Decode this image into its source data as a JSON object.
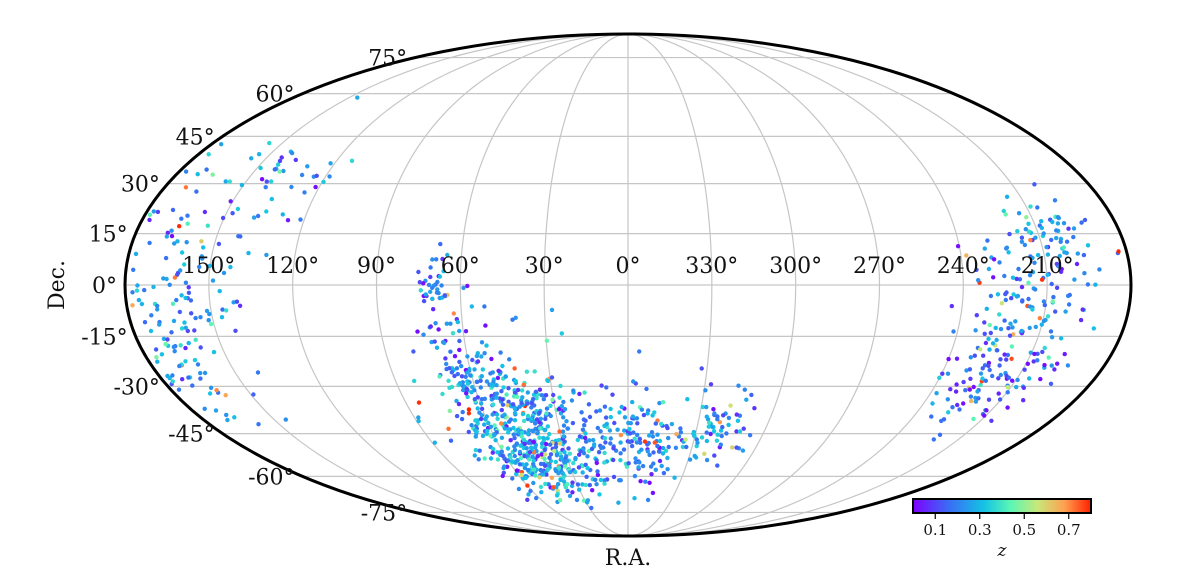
{
  "chart_data": {
    "type": "scatter",
    "projection": "mollweide",
    "xlabel": "R.A.",
    "ylabel": "Dec.",
    "grid": true,
    "ra_tick_labels": [
      "150°",
      "120°",
      "90°",
      "60°",
      "30°",
      "0°",
      "330°",
      "300°",
      "270°",
      "240°",
      "210°"
    ],
    "ra_tick_values": [
      150,
      120,
      90,
      60,
      30,
      0,
      330,
      300,
      270,
      240,
      210
    ],
    "dec_tick_labels": [
      "75°",
      "60°",
      "45°",
      "30°",
      "15°",
      "0°",
      "-15°",
      "-30°",
      "-45°",
      "-60°",
      "-75°"
    ],
    "dec_tick_values": [
      75,
      60,
      45,
      30,
      15,
      0,
      -15,
      -30,
      -45,
      -60,
      -75
    ],
    "colorbar": {
      "label": "z",
      "range": [
        0.0,
        0.8
      ],
      "tick_labels": [
        "0.1",
        "0.3",
        "0.5",
        "0.7"
      ],
      "tick_values": [
        0.1,
        0.3,
        0.5,
        0.7
      ],
      "colormap": "rainbow",
      "position": "bottom-right"
    },
    "clusters": [
      {
        "ra": 50,
        "dec": -40,
        "sd_ra": 14,
        "sd_dec": 11,
        "count": 320,
        "z_mean": 0.25
      },
      {
        "ra": 45,
        "dec": -55,
        "sd_ra": 10,
        "sd_dec": 7,
        "count": 160,
        "z_mean": 0.28
      },
      {
        "ra": 60,
        "dec": -22,
        "sd_ra": 8,
        "sd_dec": 9,
        "count": 70,
        "z_mean": 0.2
      },
      {
        "ra": 70,
        "dec": -2,
        "sd_ra": 4,
        "sd_dec": 7,
        "count": 45,
        "z_mean": 0.18
      },
      {
        "ra": 20,
        "dec": -45,
        "sd_ra": 14,
        "sd_dec": 10,
        "count": 150,
        "z_mean": 0.22
      },
      {
        "ra": 350,
        "dec": -50,
        "sd_ra": 12,
        "sd_dec": 8,
        "count": 110,
        "z_mean": 0.2
      },
      {
        "ra": 320,
        "dec": -42,
        "sd_ra": 8,
        "sd_dec": 7,
        "count": 60,
        "z_mean": 0.2
      },
      {
        "ra": 215,
        "dec": -5,
        "sd_ra": 12,
        "sd_dec": 14,
        "count": 150,
        "z_mean": 0.2
      },
      {
        "ra": 220,
        "dec": -28,
        "sd_ra": 10,
        "sd_dec": 6,
        "count": 90,
        "z_mean": 0.15
      },
      {
        "ra": 205,
        "dec": 15,
        "sd_ra": 8,
        "sd_dec": 6,
        "count": 40,
        "z_mean": 0.22
      },
      {
        "ra": 160,
        "dec": 0,
        "sd_ra": 10,
        "sd_dec": 18,
        "count": 110,
        "z_mean": 0.22
      },
      {
        "ra": 135,
        "dec": 28,
        "sd_ra": 14,
        "sd_dec": 6,
        "count": 40,
        "z_mean": 0.2
      },
      {
        "ra": 170,
        "dec": -25,
        "sd_ra": 6,
        "sd_dec": 8,
        "count": 35,
        "z_mean": 0.25
      },
      {
        "ra": 178,
        "dec": 8,
        "sd_ra": 2,
        "sd_dec": 12,
        "count": 25,
        "z_mean": 0.2
      }
    ]
  }
}
